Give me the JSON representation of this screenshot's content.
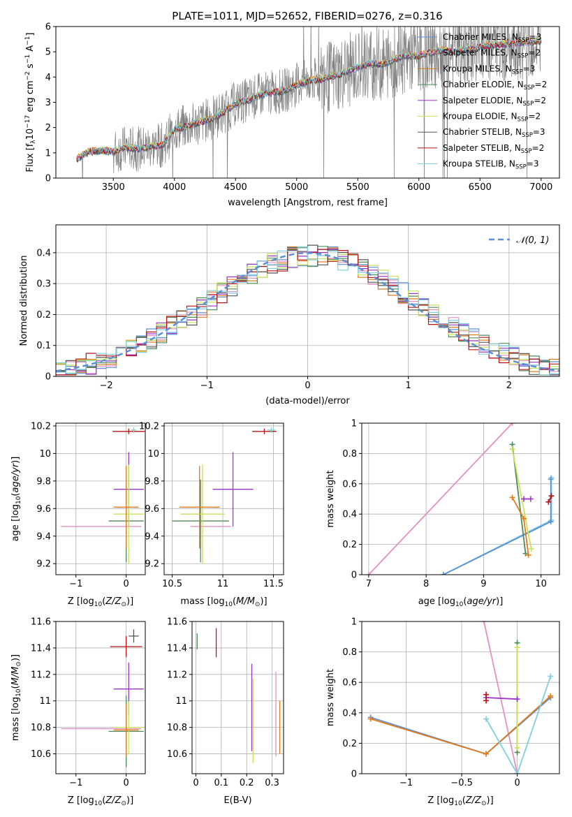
{
  "title": "PLATE=1011, MJD=52652, FIBERID=0276, z=0.316",
  "colors": {
    "miles_chabrier": "#5b8fd6",
    "miles_salpeter": "#e58fc2",
    "miles_kroupa": "#e07b1e",
    "elodie_chabrier": "#4e8a55",
    "elodie_salpeter": "#9a35c9",
    "elodie_kroupa": "#c8e35a",
    "stelib_chabrier": "#555555",
    "stelib_salpeter": "#b81414",
    "stelib_kroupa": "#7fcfe0",
    "data": "#808080",
    "grid": "#b0b0b0"
  },
  "chart_data": [
    {
      "id": "spectrum",
      "type": "line",
      "title": "PLATE=1011, MJD=52652, FIBERID=0276, z=0.316",
      "xlabel": "wavelength [Angstrom, rest frame]",
      "ylabel": "Flux [f_λ 10^-17 erg cm^-2 s^-1 A^-1]",
      "xlim": [
        3030,
        7150
      ],
      "ylim": [
        0,
        6
      ],
      "xticks": [
        3500,
        4000,
        4500,
        5000,
        5500,
        6000,
        6500,
        7000
      ],
      "yticks": [
        0,
        1,
        2,
        3,
        4,
        5,
        6
      ],
      "grid": false,
      "legend_position": "top-right",
      "legend": [
        "Chabrier MILES, N_SSP=3",
        "Salpeter MILES, N_SSP=2",
        "Kroupa MILES, N_SSP=3",
        "Chabrier ELODIE, N_SSP=2",
        "Salpeter ELODIE, N_SSP=2",
        "Kroupa ELODIE, N_SSP=2",
        "Chabrier STELIB, N_SSP=3",
        "Salpeter STELIB, N_SSP=2",
        "Kroupa STELIB, N_SSP=3"
      ],
      "model_continuum": {
        "x": [
          3200,
          3300,
          3400,
          3500,
          3600,
          3700,
          3800,
          3900,
          3950,
          4000,
          4100,
          4200,
          4300,
          4400,
          4500,
          4600,
          4700,
          4800,
          4900,
          5000,
          5100,
          5200,
          5300,
          5400,
          5500,
          5600,
          5700,
          5800,
          5900,
          6000,
          6100,
          6200,
          6300,
          6400,
          6500,
          6600,
          6700,
          6800,
          6900,
          7000
        ],
        "y": [
          0.75,
          1.05,
          1.1,
          1.05,
          1.2,
          1.15,
          1.25,
          1.3,
          1.6,
          1.95,
          2.05,
          2.2,
          2.35,
          2.6,
          2.95,
          3.1,
          3.3,
          3.4,
          3.45,
          3.7,
          3.85,
          3.9,
          4.05,
          4.2,
          4.4,
          4.55,
          4.5,
          4.7,
          4.85,
          4.85,
          5.0,
          5.05,
          5.0,
          5.1,
          5.2,
          5.25,
          5.3,
          5.35,
          5.4,
          5.45
        ]
      },
      "data_range": [
        3200,
        7000
      ]
    },
    {
      "id": "residuals",
      "type": "histogram",
      "xlabel": "(data-model)/error",
      "ylabel": "Normed distribution",
      "xlim": [
        -2.5,
        2.5
      ],
      "ylim": [
        0,
        0.49
      ],
      "xticks": [
        -2,
        -1,
        0,
        1,
        2
      ],
      "yticks": [
        0.0,
        0.1,
        0.2,
        0.3,
        0.4
      ],
      "grid": true,
      "legend_position": "top-right",
      "legend": [
        "𝒩(0, 1)"
      ],
      "bin_width": 0.1,
      "bin_start": -2.5,
      "reference": [
        0.018,
        0.024,
        0.03,
        0.04,
        0.05,
        0.062,
        0.075,
        0.09,
        0.105,
        0.12,
        0.14,
        0.16,
        0.18,
        0.2,
        0.22,
        0.245,
        0.27,
        0.29,
        0.31,
        0.33,
        0.35,
        0.365,
        0.375,
        0.385,
        0.39,
        0.39,
        0.39,
        0.385,
        0.375,
        0.365,
        0.35,
        0.33,
        0.31,
        0.29,
        0.27,
        0.245,
        0.22,
        0.2,
        0.18,
        0.16,
        0.14,
        0.12,
        0.105,
        0.09,
        0.075,
        0.062,
        0.05,
        0.04,
        0.03,
        0.024
      ]
    },
    {
      "id": "age_vs_Z",
      "type": "errorbar",
      "xlabel": "Z [log10(Z/Z⊙)]",
      "ylabel": "age  [log10(age/yr)]",
      "xlim": [
        -1.4,
        0.38
      ],
      "ylim": [
        9.12,
        10.22
      ],
      "xticks": [
        -1,
        0
      ],
      "yticks": [
        9.2,
        9.4,
        9.6,
        9.8,
        10.0,
        10.2
      ],
      "grid": true,
      "points": [
        {
          "x": -0.5,
          "y": 9.47,
          "xerr": 0.8,
          "yerr": 0.0,
          "c": "miles_salpeter"
        },
        {
          "x": 0.05,
          "y": 9.74,
          "xerr": 0.3,
          "yerr": 0.27,
          "c": "elodie_salpeter"
        },
        {
          "x": 0.0,
          "y": 9.51,
          "xerr": 0.35,
          "yerr": 0.3,
          "c": "elodie_chabrier"
        },
        {
          "x": 0.05,
          "y": 9.56,
          "xerr": 0.3,
          "yerr": 0.36,
          "c": "elodie_kroupa"
        },
        {
          "x": 0.0,
          "y": 9.61,
          "xerr": 0.25,
          "yerr": 0.3,
          "c": "miles_kroupa"
        },
        {
          "x": 0.05,
          "y": 10.16,
          "xerr": 0.32,
          "yerr": 0.02,
          "c": "stelib_salpeter"
        },
        {
          "x": 0.15,
          "y": 10.17,
          "xerr": 0.05,
          "yerr": 0.02,
          "c": "stelib_kroupa"
        }
      ]
    },
    {
      "id": "age_vs_mass",
      "type": "errorbar",
      "xlabel": "mass [log10(M/M⊙)]",
      "xlim": [
        10.42,
        11.6
      ],
      "ylim": [
        9.12,
        10.22
      ],
      "xticks": [
        10.5,
        11.0,
        11.5
      ],
      "yticks": [
        9.2,
        9.4,
        9.6,
        9.8,
        10.0,
        10.2
      ],
      "grid": true,
      "points": [
        {
          "x": 10.88,
          "y": 9.47,
          "xerr": 0.2,
          "yerr": 0.0,
          "c": "miles_salpeter"
        },
        {
          "x": 11.1,
          "y": 9.74,
          "xerr": 0.2,
          "yerr": 0.27,
          "c": "elodie_salpeter"
        },
        {
          "x": 10.78,
          "y": 9.51,
          "xerr": 0.28,
          "yerr": 0.3,
          "c": "elodie_chabrier"
        },
        {
          "x": 10.8,
          "y": 9.56,
          "xerr": 0.22,
          "yerr": 0.36,
          "c": "elodie_kroupa"
        },
        {
          "x": 10.77,
          "y": 9.61,
          "xerr": 0.2,
          "yerr": 0.3,
          "c": "miles_kroupa"
        },
        {
          "x": 11.41,
          "y": 10.16,
          "xerr": 0.12,
          "yerr": 0.02,
          "c": "stelib_salpeter"
        },
        {
          "x": 11.48,
          "y": 10.17,
          "xerr": 0.04,
          "yerr": 0.02,
          "c": "stelib_kroupa"
        }
      ]
    },
    {
      "id": "weight_vs_age",
      "type": "line",
      "xlabel": "age  [log10(age/yr)]",
      "ylabel": "mass weight",
      "xlim": [
        6.88,
        10.32
      ],
      "ylim": [
        0,
        1
      ],
      "xticks": [
        7,
        8,
        9,
        10
      ],
      "yticks": [
        0.0,
        0.2,
        0.4,
        0.6,
        0.8,
        1.0
      ],
      "grid": true,
      "series": [
        {
          "c": "miles_salpeter",
          "x": [
            7.0,
            9.5
          ],
          "y": [
            0.0,
            1.0
          ]
        },
        {
          "c": "stelib_kroupa",
          "x": [
            8.3,
            10.18,
            10.18
          ],
          "y": [
            0.0,
            0.36,
            0.64
          ]
        },
        {
          "c": "miles_chabrier",
          "x": [
            8.3,
            10.17,
            10.17
          ],
          "y": [
            0.0,
            0.35,
            0.63
          ]
        },
        {
          "c": "elodie_chabrier",
          "x": [
            9.5,
            9.73
          ],
          "y": [
            0.86,
            0.14
          ]
        },
        {
          "c": "elodie_kroupa",
          "x": [
            9.5,
            9.83
          ],
          "y": [
            0.83,
            0.17
          ]
        },
        {
          "c": "miles_kroupa",
          "x": [
            9.5,
            9.7,
            9.78
          ],
          "y": [
            0.51,
            0.37,
            0.13
          ]
        },
        {
          "c": "elodie_salpeter",
          "x": [
            9.7,
            9.82
          ],
          "y": [
            0.5,
            0.5
          ]
        },
        {
          "c": "stelib_salpeter",
          "x": [
            10.13,
            10.18
          ],
          "y": [
            0.48,
            0.52
          ]
        }
      ]
    },
    {
      "id": "mass_vs_Z",
      "type": "errorbar",
      "xlabel": "Z [log10(Z/Z⊙)]",
      "ylabel": "mass [log10(M/M⊙)]",
      "xlim": [
        -1.4,
        0.38
      ],
      "ylim": [
        10.45,
        11.6
      ],
      "xticks": [
        -1,
        0
      ],
      "yticks": [
        10.6,
        10.8,
        11.0,
        11.2,
        11.4,
        11.6
      ],
      "grid": true,
      "points": [
        {
          "x": -0.5,
          "y": 10.79,
          "xerr": 0.8,
          "yerr": 0.0,
          "c": "miles_salpeter"
        },
        {
          "x": 0.05,
          "y": 11.09,
          "xerr": 0.3,
          "yerr": 0.2,
          "c": "elodie_salpeter"
        },
        {
          "x": 0.0,
          "y": 10.77,
          "xerr": 0.35,
          "yerr": 0.27,
          "c": "elodie_chabrier"
        },
        {
          "x": 0.05,
          "y": 10.8,
          "xerr": 0.3,
          "yerr": 0.2,
          "c": "elodie_kroupa"
        },
        {
          "x": 0.0,
          "y": 10.78,
          "xerr": 0.25,
          "yerr": 0.2,
          "c": "miles_kroupa"
        },
        {
          "x": 0.0,
          "y": 11.41,
          "xerr": 0.32,
          "yerr": 0.08,
          "c": "stelib_salpeter"
        },
        {
          "x": 0.15,
          "y": 11.49,
          "xerr": 0.1,
          "yerr": 0.05,
          "c": "stelib_chabrier"
        }
      ]
    },
    {
      "id": "mass_vs_ebv",
      "type": "errorbar",
      "xlabel": "E(B-V)",
      "xlim": [
        -0.015,
        0.345
      ],
      "ylim": [
        10.45,
        11.6
      ],
      "xticks": [
        0.0,
        0.1,
        0.2,
        0.3
      ],
      "yticks": [
        10.6,
        10.8,
        11.0,
        11.2,
        11.4,
        11.6
      ],
      "grid": true,
      "points": [
        {
          "x": 0.005,
          "y": 11.45,
          "xerr": 0.0,
          "yerr": 0.06,
          "c": "elodie_chabrier"
        },
        {
          "x": 0.08,
          "y": 11.44,
          "xerr": 0.0,
          "yerr": 0.11,
          "c": "stelib_salpeter"
        },
        {
          "x": 0.22,
          "y": 10.95,
          "xerr": 0.0,
          "yerr": 0.33,
          "c": "elodie_salpeter"
        },
        {
          "x": 0.225,
          "y": 10.85,
          "xerr": 0.0,
          "yerr": 0.32,
          "c": "elodie_kroupa"
        },
        {
          "x": 0.315,
          "y": 10.9,
          "xerr": 0.0,
          "yerr": 0.32,
          "c": "miles_salpeter"
        },
        {
          "x": 0.33,
          "y": 10.8,
          "xerr": 0.0,
          "yerr": 0.2,
          "c": "miles_kroupa"
        }
      ]
    },
    {
      "id": "weight_vs_Z",
      "type": "line",
      "xlabel": "Z [log10(Z/Z⊙)]",
      "ylabel": "mass weight",
      "xlim": [
        -1.4,
        0.38
      ],
      "ylim": [
        0,
        1
      ],
      "xticks": [
        -1.0,
        -0.5,
        0.0
      ],
      "yticks": [
        0.0,
        0.2,
        0.4,
        0.6,
        0.8,
        1.0
      ],
      "grid": true,
      "series": [
        {
          "c": "miles_salpeter",
          "x": [
            -0.3,
            0.0
          ],
          "y": [
            1.0,
            0.0
          ]
        },
        {
          "c": "miles_chabrier",
          "x": [
            -1.32,
            -0.28,
            0.3
          ],
          "y": [
            0.37,
            0.13,
            0.5
          ]
        },
        {
          "c": "miles_kroupa",
          "x": [
            -1.32,
            -0.28,
            0.3
          ],
          "y": [
            0.36,
            0.13,
            0.51
          ]
        },
        {
          "c": "stelib_kroupa",
          "x": [
            -0.28,
            0.0,
            0.3
          ],
          "y": [
            0.36,
            0.0,
            0.64
          ]
        },
        {
          "c": "elodie_chabrier",
          "x": [
            0.0,
            0.0
          ],
          "y": [
            0.86,
            0.14
          ]
        },
        {
          "c": "elodie_kroupa",
          "x": [
            0.0,
            0.0
          ],
          "y": [
            0.83,
            0.17
          ]
        },
        {
          "c": "elodie_salpeter",
          "x": [
            -0.28,
            0.0
          ],
          "y": [
            0.5,
            0.49
          ]
        },
        {
          "c": "stelib_salpeter",
          "x": [
            -0.28,
            -0.28
          ],
          "y": [
            0.48,
            0.52
          ]
        }
      ]
    }
  ]
}
